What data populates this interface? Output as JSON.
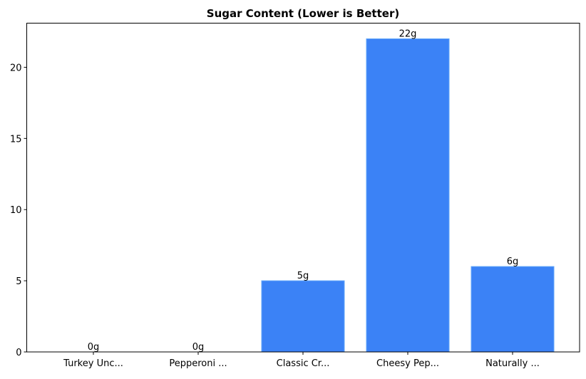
{
  "chart_data": {
    "type": "bar",
    "title": "Sugar Content (Lower is Better)",
    "xlabel": "",
    "ylabel": "",
    "categories": [
      "Turkey Unc...",
      "Pepperoni ...",
      "Classic Cr...",
      "Cheesy Pep...",
      "Naturally ..."
    ],
    "values": [
      0,
      0,
      5,
      22,
      6
    ],
    "data_labels": [
      "0g",
      "0g",
      "5g",
      "22g",
      "6g"
    ],
    "ylim": [
      0,
      23.1
    ],
    "yticks": [
      0,
      5,
      10,
      15,
      20
    ],
    "grid": false,
    "bar_color": "#3b82f6",
    "bar_edge_color": "#60a5fa"
  }
}
